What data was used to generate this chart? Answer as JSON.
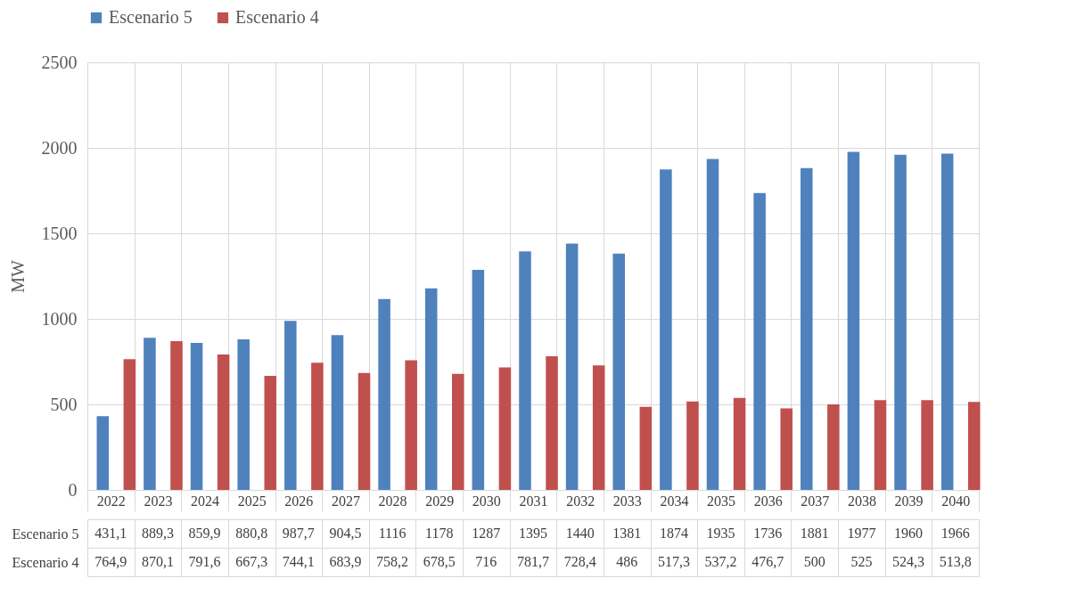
{
  "chart_data": {
    "type": "bar",
    "ylabel": "MW",
    "categories": [
      "2022",
      "2023",
      "2024",
      "2025",
      "2026",
      "2027",
      "2028",
      "2029",
      "2030",
      "2031",
      "2032",
      "2033",
      "2034",
      "2035",
      "2036",
      "2037",
      "2038",
      "2039",
      "2040"
    ],
    "series": [
      {
        "name": "Escenario 5",
        "color": "#4f81bd",
        "values": [
          431.1,
          889.3,
          859.9,
          880.8,
          987.7,
          904.5,
          1116,
          1178,
          1287,
          1395,
          1440,
          1381,
          1874,
          1935,
          1736,
          1881,
          1977,
          1960,
          1966
        ],
        "value_labels": [
          "431,1",
          "889,3",
          "859,9",
          "880,8",
          "987,7",
          "904,5",
          "1116",
          "1178",
          "1287",
          "1395",
          "1440",
          "1381",
          "1874",
          "1935",
          "1736",
          "1881",
          "1977",
          "1960",
          "1966"
        ]
      },
      {
        "name": "Escenario 4",
        "color": "#c0504d",
        "values": [
          764.9,
          870.1,
          791.6,
          667.3,
          744.1,
          683.9,
          758.2,
          678.5,
          716,
          781.7,
          728.4,
          486,
          517.3,
          537.2,
          476.7,
          500,
          525,
          524.3,
          513.8
        ],
        "value_labels": [
          "764,9",
          "870,1",
          "791,6",
          "667,3",
          "744,1",
          "683,9",
          "758,2",
          "678,5",
          "716",
          "781,7",
          "728,4",
          "486",
          "517,3",
          "537,2",
          "476,7",
          "500",
          "525",
          "524,3",
          "513,8"
        ]
      }
    ],
    "ylim": [
      0,
      2500
    ],
    "yticks": [
      0,
      500,
      1000,
      1500,
      2000,
      2500
    ],
    "grid": "y",
    "legend": "top"
  }
}
